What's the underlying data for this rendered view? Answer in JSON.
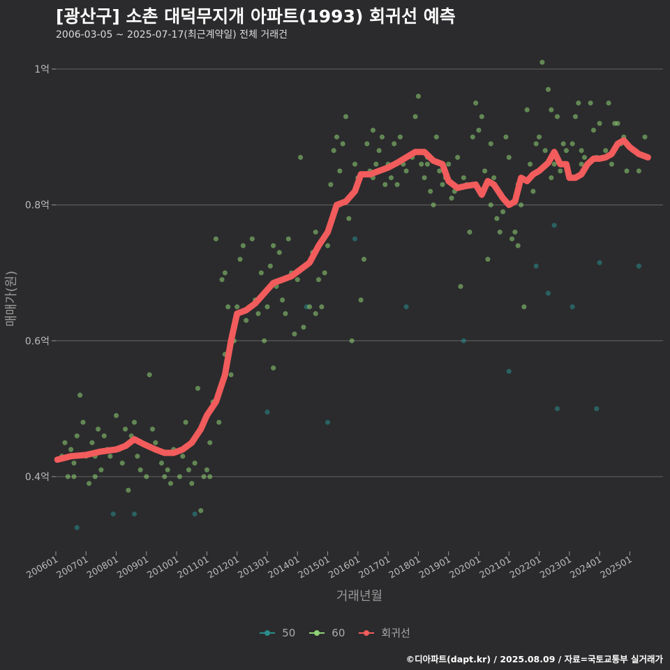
{
  "chart_data": {
    "type": "scatter",
    "title": "[광산구] 소촌 대덕무지개 아파트(1993) 회귀선 예측",
    "subtitle": "2006-03-05 ~ 2025-07-17(최근계약일) 전체 거래건",
    "xlabel": "거래년월",
    "ylabel": "매매가(원)",
    "xlim": [
      2006.0,
      2026.1
    ],
    "ylim": [
      0.29,
      1.04
    ],
    "y_ticks": [
      {
        "value": 0.4,
        "label": "0.4억"
      },
      {
        "value": 0.6,
        "label": "0.6억"
      },
      {
        "value": 0.8,
        "label": "0.8억"
      },
      {
        "value": 1.0,
        "label": "1억"
      }
    ],
    "x_ticks": [
      {
        "value": 2006.0,
        "label": "200601"
      },
      {
        "value": 2007.0,
        "label": "200701"
      },
      {
        "value": 2008.0,
        "label": "200801"
      },
      {
        "value": 2009.0,
        "label": "200901"
      },
      {
        "value": 2010.0,
        "label": "201001"
      },
      {
        "value": 2011.0,
        "label": "201101"
      },
      {
        "value": 2012.0,
        "label": "201201"
      },
      {
        "value": 2013.0,
        "label": "201301"
      },
      {
        "value": 2014.0,
        "label": "201401"
      },
      {
        "value": 2015.0,
        "label": "201501"
      },
      {
        "value": 2016.0,
        "label": "201601"
      },
      {
        "value": 2017.0,
        "label": "201701"
      },
      {
        "value": 2018.0,
        "label": "201801"
      },
      {
        "value": 2019.0,
        "label": "201901"
      },
      {
        "value": 2020.0,
        "label": "202001"
      },
      {
        "value": 2021.0,
        "label": "202101"
      },
      {
        "value": 2022.0,
        "label": "202201"
      },
      {
        "value": 2023.0,
        "label": "202301"
      },
      {
        "value": 2024.0,
        "label": "202401"
      },
      {
        "value": 2025.0,
        "label": "202501"
      }
    ],
    "legend": [
      {
        "name": "50",
        "color": "#2a8c8c"
      },
      {
        "name": "60",
        "color": "#8fd175"
      },
      {
        "name": "회귀선",
        "color": "#f25c5c"
      }
    ],
    "series": [
      {
        "name": "50",
        "color": "#2a8c8c",
        "points": [
          [
            2006.7,
            0.325
          ],
          [
            2007.9,
            0.345
          ],
          [
            2008.6,
            0.345
          ],
          [
            2010.6,
            0.345
          ],
          [
            2013.0,
            0.495
          ],
          [
            2015.0,
            0.48
          ],
          [
            2015.9,
            0.75
          ],
          [
            2017.6,
            0.65
          ],
          [
            2019.5,
            0.6
          ],
          [
            2021.0,
            0.555
          ],
          [
            2021.9,
            0.71
          ],
          [
            2022.3,
            0.67
          ],
          [
            2022.5,
            0.77
          ],
          [
            2022.6,
            0.5
          ],
          [
            2023.1,
            0.65
          ],
          [
            2023.9,
            0.5
          ],
          [
            2024.0,
            0.715
          ],
          [
            2025.3,
            0.71
          ],
          [
            2014.3,
            0.65
          ]
        ]
      },
      {
        "name": "60",
        "color": "#8fd175",
        "points": [
          [
            2006.2,
            0.43
          ],
          [
            2006.3,
            0.45
          ],
          [
            2006.4,
            0.4
          ],
          [
            2006.5,
            0.44
          ],
          [
            2006.6,
            0.42
          ],
          [
            2006.7,
            0.46
          ],
          [
            2006.8,
            0.52
          ],
          [
            2006.9,
            0.48
          ],
          [
            2007.0,
            0.43
          ],
          [
            2007.1,
            0.39
          ],
          [
            2007.2,
            0.45
          ],
          [
            2007.3,
            0.4
          ],
          [
            2007.4,
            0.47
          ],
          [
            2007.5,
            0.41
          ],
          [
            2007.6,
            0.46
          ],
          [
            2007.7,
            0.44
          ],
          [
            2007.8,
            0.43
          ],
          [
            2008.0,
            0.49
          ],
          [
            2008.1,
            0.44
          ],
          [
            2008.2,
            0.42
          ],
          [
            2008.3,
            0.47
          ],
          [
            2008.4,
            0.38
          ],
          [
            2008.5,
            0.46
          ],
          [
            2008.6,
            0.48
          ],
          [
            2008.7,
            0.43
          ],
          [
            2008.8,
            0.45
          ],
          [
            2009.0,
            0.4
          ],
          [
            2009.1,
            0.55
          ],
          [
            2009.2,
            0.47
          ],
          [
            2009.3,
            0.45
          ],
          [
            2009.5,
            0.42
          ],
          [
            2009.6,
            0.4
          ],
          [
            2009.8,
            0.39
          ],
          [
            2009.9,
            0.44
          ],
          [
            2010.1,
            0.4
          ],
          [
            2010.2,
            0.43
          ],
          [
            2010.3,
            0.48
          ],
          [
            2010.4,
            0.41
          ],
          [
            2010.5,
            0.39
          ],
          [
            2010.7,
            0.53
          ],
          [
            2010.8,
            0.35
          ],
          [
            2010.9,
            0.4
          ],
          [
            2011.0,
            0.41
          ],
          [
            2011.1,
            0.45
          ],
          [
            2011.2,
            0.51
          ],
          [
            2011.3,
            0.75
          ],
          [
            2011.4,
            0.48
          ],
          [
            2011.5,
            0.69
          ],
          [
            2011.6,
            0.7
          ],
          [
            2011.7,
            0.65
          ],
          [
            2011.8,
            0.55
          ],
          [
            2011.9,
            0.6
          ],
          [
            2012.0,
            0.65
          ],
          [
            2012.1,
            0.72
          ],
          [
            2012.2,
            0.74
          ],
          [
            2012.3,
            0.63
          ],
          [
            2012.5,
            0.75
          ],
          [
            2012.6,
            0.66
          ],
          [
            2012.7,
            0.64
          ],
          [
            2012.8,
            0.7
          ],
          [
            2012.9,
            0.6
          ],
          [
            2013.0,
            0.65
          ],
          [
            2013.1,
            0.71
          ],
          [
            2013.2,
            0.74
          ],
          [
            2013.3,
            0.68
          ],
          [
            2013.4,
            0.73
          ],
          [
            2013.5,
            0.66
          ],
          [
            2013.6,
            0.64
          ],
          [
            2013.7,
            0.75
          ],
          [
            2013.8,
            0.7
          ],
          [
            2013.9,
            0.61
          ],
          [
            2014.0,
            0.69
          ],
          [
            2014.1,
            0.87
          ],
          [
            2014.2,
            0.62
          ],
          [
            2014.3,
            0.71
          ],
          [
            2014.4,
            0.65
          ],
          [
            2014.5,
            0.73
          ],
          [
            2014.6,
            0.76
          ],
          [
            2014.7,
            0.69
          ],
          [
            2014.8,
            0.65
          ],
          [
            2014.9,
            0.7
          ],
          [
            2015.0,
            0.74
          ],
          [
            2015.1,
            0.83
          ],
          [
            2015.2,
            0.88
          ],
          [
            2015.3,
            0.9
          ],
          [
            2015.4,
            0.85
          ],
          [
            2015.5,
            0.89
          ],
          [
            2015.6,
            0.93
          ],
          [
            2015.7,
            0.78
          ],
          [
            2015.8,
            0.6
          ],
          [
            2015.9,
            0.86
          ],
          [
            2016.0,
            0.84
          ],
          [
            2016.1,
            0.66
          ],
          [
            2016.2,
            0.72
          ],
          [
            2016.3,
            0.89
          ],
          [
            2016.4,
            0.85
          ],
          [
            2016.5,
            0.91
          ],
          [
            2016.6,
            0.86
          ],
          [
            2016.7,
            0.88
          ],
          [
            2016.8,
            0.9
          ],
          [
            2016.9,
            0.83
          ],
          [
            2017.0,
            0.86
          ],
          [
            2017.1,
            0.84
          ],
          [
            2017.2,
            0.89
          ],
          [
            2017.3,
            0.83
          ],
          [
            2017.5,
            0.86
          ],
          [
            2017.6,
            0.85
          ],
          [
            2017.8,
            0.87
          ],
          [
            2017.9,
            0.93
          ],
          [
            2018.0,
            0.96
          ],
          [
            2018.1,
            0.86
          ],
          [
            2018.2,
            0.84
          ],
          [
            2018.3,
            0.87
          ],
          [
            2018.4,
            0.82
          ],
          [
            2018.5,
            0.8
          ],
          [
            2018.6,
            0.9
          ],
          [
            2018.7,
            0.85
          ],
          [
            2018.8,
            0.83
          ],
          [
            2018.9,
            0.84
          ],
          [
            2019.0,
            0.86
          ],
          [
            2019.1,
            0.81
          ],
          [
            2019.2,
            0.82
          ],
          [
            2019.3,
            0.87
          ],
          [
            2019.4,
            0.68
          ],
          [
            2019.6,
            0.83
          ],
          [
            2019.7,
            0.76
          ],
          [
            2019.8,
            0.9
          ],
          [
            2019.9,
            0.95
          ],
          [
            2020.0,
            0.91
          ],
          [
            2020.1,
            0.93
          ],
          [
            2020.2,
            0.85
          ],
          [
            2020.3,
            0.72
          ],
          [
            2020.4,
            0.8
          ],
          [
            2020.5,
            0.84
          ],
          [
            2020.6,
            0.78
          ],
          [
            2020.7,
            0.76
          ],
          [
            2020.8,
            0.79
          ],
          [
            2020.9,
            0.9
          ],
          [
            2021.0,
            0.87
          ],
          [
            2021.1,
            0.75
          ],
          [
            2021.2,
            0.76
          ],
          [
            2021.3,
            0.74
          ],
          [
            2021.4,
            0.8
          ],
          [
            2021.5,
            0.65
          ],
          [
            2021.6,
            0.94
          ],
          [
            2021.7,
            0.86
          ],
          [
            2021.8,
            0.82
          ],
          [
            2021.9,
            0.89
          ],
          [
            2022.0,
            0.9
          ],
          [
            2022.1,
            1.01
          ],
          [
            2022.2,
            0.88
          ],
          [
            2022.3,
            0.97
          ],
          [
            2022.4,
            0.94
          ],
          [
            2022.5,
            0.86
          ],
          [
            2022.6,
            0.93
          ],
          [
            2022.7,
            0.85
          ],
          [
            2022.8,
            0.89
          ],
          [
            2022.9,
            0.88
          ],
          [
            2023.0,
            0.84
          ],
          [
            2023.1,
            0.89
          ],
          [
            2023.2,
            0.93
          ],
          [
            2023.3,
            0.95
          ],
          [
            2023.4,
            0.88
          ],
          [
            2023.5,
            0.87
          ],
          [
            2023.7,
            0.95
          ],
          [
            2023.8,
            0.91
          ],
          [
            2023.9,
            0.87
          ],
          [
            2024.0,
            0.92
          ],
          [
            2024.2,
            0.88
          ],
          [
            2024.3,
            0.95
          ],
          [
            2024.4,
            0.86
          ],
          [
            2024.5,
            0.92
          ],
          [
            2024.7,
            0.89
          ],
          [
            2024.8,
            0.9
          ],
          [
            2024.9,
            0.85
          ],
          [
            2025.1,
            0.88
          ],
          [
            2025.3,
            0.85
          ],
          [
            2025.5,
            0.9
          ],
          [
            2006.6,
            0.4
          ],
          [
            2007.3,
            0.43
          ],
          [
            2008.8,
            0.41
          ],
          [
            2009.7,
            0.41
          ],
          [
            2010.6,
            0.42
          ],
          [
            2011.1,
            0.4
          ],
          [
            2011.6,
            0.58
          ],
          [
            2012.4,
            0.65
          ],
          [
            2013.2,
            0.56
          ],
          [
            2014.6,
            0.64
          ],
          [
            2015.4,
            0.8
          ],
          [
            2016.5,
            0.84
          ],
          [
            2017.4,
            0.9
          ],
          [
            2018.3,
            0.86
          ],
          [
            2019.5,
            0.84
          ],
          [
            2020.4,
            0.89
          ],
          [
            2021.3,
            0.83
          ],
          [
            2022.4,
            0.84
          ],
          [
            2023.4,
            0.86
          ],
          [
            2024.6,
            0.92
          ]
        ]
      }
    ],
    "regression": {
      "name": "회귀선",
      "color": "#f25c5c",
      "points": [
        [
          2006.05,
          0.425
        ],
        [
          2006.5,
          0.43
        ],
        [
          2007.0,
          0.432
        ],
        [
          2007.5,
          0.437
        ],
        [
          2008.0,
          0.44
        ],
        [
          2008.3,
          0.445
        ],
        [
          2008.6,
          0.455
        ],
        [
          2008.9,
          0.448
        ],
        [
          2009.3,
          0.44
        ],
        [
          2009.6,
          0.435
        ],
        [
          2009.9,
          0.435
        ],
        [
          2010.2,
          0.44
        ],
        [
          2010.5,
          0.45
        ],
        [
          2010.8,
          0.47
        ],
        [
          2011.0,
          0.49
        ],
        [
          2011.3,
          0.51
        ],
        [
          2011.6,
          0.55
        ],
        [
          2011.8,
          0.6
        ],
        [
          2012.0,
          0.64
        ],
        [
          2012.3,
          0.645
        ],
        [
          2012.6,
          0.655
        ],
        [
          2012.9,
          0.67
        ],
        [
          2013.2,
          0.685
        ],
        [
          2013.5,
          0.69
        ],
        [
          2013.8,
          0.695
        ],
        [
          2014.1,
          0.705
        ],
        [
          2014.4,
          0.715
        ],
        [
          2014.7,
          0.74
        ],
        [
          2015.0,
          0.76
        ],
        [
          2015.3,
          0.8
        ],
        [
          2015.6,
          0.805
        ],
        [
          2015.9,
          0.82
        ],
        [
          2016.1,
          0.845
        ],
        [
          2016.4,
          0.845
        ],
        [
          2016.7,
          0.85
        ],
        [
          2017.0,
          0.855
        ],
        [
          2017.3,
          0.862
        ],
        [
          2017.6,
          0.87
        ],
        [
          2017.9,
          0.878
        ],
        [
          2018.2,
          0.878
        ],
        [
          2018.5,
          0.865
        ],
        [
          2018.8,
          0.86
        ],
        [
          2019.0,
          0.835
        ],
        [
          2019.3,
          0.825
        ],
        [
          2019.6,
          0.828
        ],
        [
          2019.9,
          0.83
        ],
        [
          2020.1,
          0.815
        ],
        [
          2020.3,
          0.835
        ],
        [
          2020.5,
          0.83
        ],
        [
          2020.8,
          0.81
        ],
        [
          2021.0,
          0.8
        ],
        [
          2021.2,
          0.805
        ],
        [
          2021.4,
          0.84
        ],
        [
          2021.6,
          0.835
        ],
        [
          2021.8,
          0.845
        ],
        [
          2022.0,
          0.85
        ],
        [
          2022.3,
          0.862
        ],
        [
          2022.5,
          0.878
        ],
        [
          2022.7,
          0.86
        ],
        [
          2022.9,
          0.86
        ],
        [
          2023.0,
          0.84
        ],
        [
          2023.2,
          0.84
        ],
        [
          2023.4,
          0.845
        ],
        [
          2023.6,
          0.86
        ],
        [
          2023.8,
          0.868
        ],
        [
          2024.0,
          0.868
        ],
        [
          2024.2,
          0.87
        ],
        [
          2024.4,
          0.875
        ],
        [
          2024.6,
          0.89
        ],
        [
          2024.8,
          0.895
        ],
        [
          2025.0,
          0.885
        ],
        [
          2025.3,
          0.875
        ],
        [
          2025.6,
          0.87
        ]
      ]
    }
  },
  "caption": "©디아파트(dapt.kr) / 2025.08.09 / 자료=국토교통부 실거래가"
}
